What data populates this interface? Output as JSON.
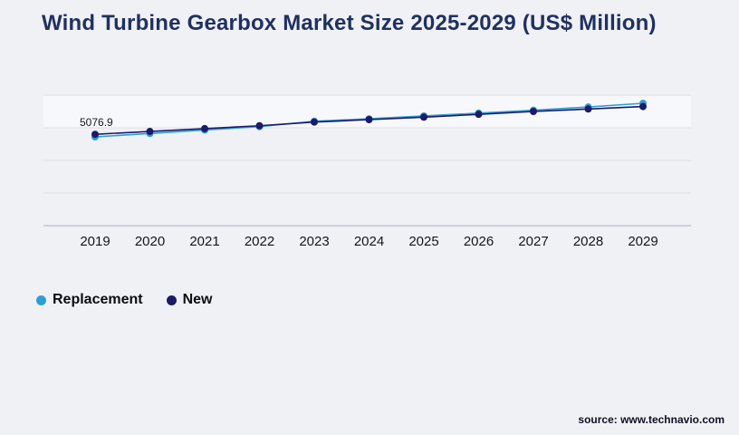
{
  "title": "Wind Turbine Gearbox Market Size 2025-2029 (US$ Million)",
  "source_text": "source: www.technavio.com",
  "colors": {
    "background": "#f0f1f5",
    "title": "#1f3163",
    "gridline": "#dde0e6",
    "axis_line": "#aab0ba",
    "replacement": "#2d9fd8",
    "new": "#1b1b6b"
  },
  "legend": {
    "items": [
      {
        "label": "Replacement",
        "color": "#2d9fd8"
      },
      {
        "label": "New",
        "color": "#1b1b6b"
      }
    ]
  },
  "chart_data": {
    "type": "line",
    "title": "Wind Turbine Gearbox Market Size 2025-2029 (US$ Million)",
    "categories": [
      "2019",
      "2020",
      "2021",
      "2022",
      "2023",
      "2024",
      "2025",
      "2026",
      "2027",
      "2028",
      "2029"
    ],
    "series": [
      {
        "name": "Replacement",
        "color": "#2d9fd8",
        "values": [
          5076.9,
          5160,
          5245,
          5330,
          5460,
          5520,
          5590,
          5660,
          5730,
          5810,
          5900
        ]
      },
      {
        "name": "New",
        "color": "#1b1b6b",
        "values": [
          5140,
          5210,
          5280,
          5350,
          5440,
          5500,
          5560,
          5630,
          5700,
          5760,
          5820
        ]
      }
    ],
    "annotations": [
      {
        "text": "5076.9",
        "series": "Replacement",
        "category": "2019"
      }
    ],
    "ylim": [
      2900,
      6100
    ],
    "xlabel": "",
    "ylabel": "",
    "grid": true,
    "legend_position": "bottom-left"
  }
}
